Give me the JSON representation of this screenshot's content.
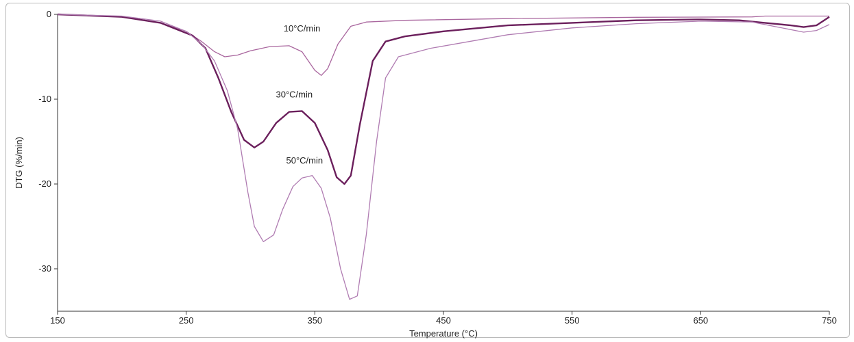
{
  "chart_data": {
    "type": "line",
    "xlabel": "Temperature (°C)",
    "ylabel": "DTG (%/min)",
    "xlim": [
      150,
      750
    ],
    "ylim": [
      -35,
      0
    ],
    "x_ticks": [
      150,
      250,
      350,
      450,
      550,
      650,
      750
    ],
    "y_ticks": [
      0,
      -10,
      -20,
      -30
    ],
    "grid": false,
    "colors": {
      "series_1": "#a9669e",
      "series_2": "#6b1f5c",
      "series_3": "#b07cb2",
      "axis": "#333333"
    },
    "annotations": [
      {
        "text": "10°C/min",
        "series": 0,
        "x": 340,
        "y": -2
      },
      {
        "text": "30°C/min",
        "series": 1,
        "x": 334,
        "y": -9.8
      },
      {
        "text": "50°C/min",
        "series": 2,
        "x": 342,
        "y": -17.6
      }
    ],
    "series": [
      {
        "points": [
          [
            150,
            0
          ],
          [
            200,
            -0.3
          ],
          [
            230,
            -1
          ],
          [
            250,
            -2
          ],
          [
            262,
            -3.2
          ],
          [
            272,
            -4.4
          ],
          [
            280,
            -5
          ],
          [
            290,
            -4.8
          ],
          [
            300,
            -4.3
          ],
          [
            315,
            -3.8
          ],
          [
            330,
            -3.7
          ],
          [
            340,
            -4.4
          ],
          [
            350,
            -6.6
          ],
          [
            355,
            -7.2
          ],
          [
            360,
            -6.4
          ],
          [
            368,
            -3.5
          ],
          [
            378,
            -1.4
          ],
          [
            390,
            -0.9
          ],
          [
            420,
            -0.7
          ],
          [
            500,
            -0.5
          ],
          [
            600,
            -0.35
          ],
          [
            690,
            -0.3
          ],
          [
            700,
            -0.2
          ],
          [
            750,
            -0.2
          ]
        ]
      },
      {
        "points": [
          [
            150,
            0
          ],
          [
            200,
            -0.3
          ],
          [
            230,
            -1
          ],
          [
            255,
            -2.5
          ],
          [
            265,
            -4
          ],
          [
            275,
            -7.5
          ],
          [
            285,
            -11.5
          ],
          [
            295,
            -14.8
          ],
          [
            303,
            -15.7
          ],
          [
            310,
            -15
          ],
          [
            320,
            -12.8
          ],
          [
            330,
            -11.5
          ],
          [
            340,
            -11.4
          ],
          [
            350,
            -12.8
          ],
          [
            360,
            -16
          ],
          [
            367,
            -19.2
          ],
          [
            373,
            -20
          ],
          [
            378,
            -19
          ],
          [
            385,
            -13
          ],
          [
            395,
            -5.5
          ],
          [
            405,
            -3.2
          ],
          [
            420,
            -2.6
          ],
          [
            450,
            -2
          ],
          [
            500,
            -1.3
          ],
          [
            550,
            -1
          ],
          [
            600,
            -0.7
          ],
          [
            650,
            -0.6
          ],
          [
            680,
            -0.7
          ],
          [
            700,
            -1
          ],
          [
            720,
            -1.3
          ],
          [
            730,
            -1.5
          ],
          [
            740,
            -1.3
          ],
          [
            750,
            -0.3
          ]
        ]
      },
      {
        "points": [
          [
            150,
            0
          ],
          [
            200,
            -0.2
          ],
          [
            230,
            -0.8
          ],
          [
            250,
            -2
          ],
          [
            262,
            -3.5
          ],
          [
            272,
            -5.5
          ],
          [
            282,
            -9
          ],
          [
            290,
            -13.5
          ],
          [
            298,
            -21
          ],
          [
            303,
            -25
          ],
          [
            310,
            -26.8
          ],
          [
            318,
            -26
          ],
          [
            325,
            -23
          ],
          [
            333,
            -20.3
          ],
          [
            340,
            -19.3
          ],
          [
            348,
            -19
          ],
          [
            355,
            -20.5
          ],
          [
            362,
            -24
          ],
          [
            370,
            -30
          ],
          [
            377,
            -33.6
          ],
          [
            383,
            -33.2
          ],
          [
            390,
            -26
          ],
          [
            398,
            -15
          ],
          [
            405,
            -7.5
          ],
          [
            415,
            -5
          ],
          [
            440,
            -4
          ],
          [
            500,
            -2.4
          ],
          [
            550,
            -1.6
          ],
          [
            600,
            -1.1
          ],
          [
            650,
            -0.8
          ],
          [
            690,
            -0.9
          ],
          [
            710,
            -1.5
          ],
          [
            730,
            -2.1
          ],
          [
            740,
            -1.9
          ],
          [
            750,
            -1.2
          ]
        ]
      }
    ]
  }
}
